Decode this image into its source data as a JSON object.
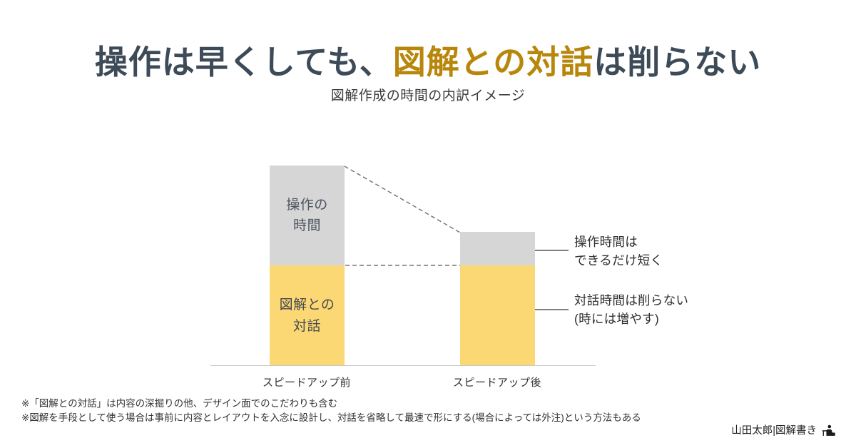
{
  "colors": {
    "title_text": "#3d4a57",
    "title_highlight": "#b8860b",
    "bar_gray": "#d6d6d6",
    "bar_yellow": "#fcd874",
    "annotation_line": "#555555"
  },
  "title": {
    "prefix": "操作は早くしても、",
    "highlight": "図解との対話",
    "suffix": "は削らない"
  },
  "subtitle": "図解作成の時間の内訳イメージ",
  "chart": {
    "type": "stacked-bar-comparison",
    "bars": [
      {
        "axis_label": "スピードアップ前",
        "gray_height": 140,
        "yellow_height": 141,
        "gray_segment": {
          "label_line1": "操作の",
          "label_line2": "時間"
        },
        "yellow_segment": {
          "label_line1": "図解との",
          "label_line2": "対話"
        }
      },
      {
        "axis_label": "スピードアップ後",
        "gray_height": 47,
        "yellow_height": 141,
        "gray_segment": {
          "label_line1": "",
          "label_line2": ""
        },
        "yellow_segment": {
          "label_line1": "",
          "label_line2": ""
        }
      }
    ],
    "annotations": [
      {
        "line1": "操作時間は",
        "line2": "できるだけ短く"
      },
      {
        "line1": "対話時間は削らない",
        "line2": "(時には増やす)"
      }
    ]
  },
  "footnotes": [
    "※「図解との対話」は内容の深掘りの他、デザイン面でのこだわりも含む",
    "※図解を手段として使う場合は事前に内容とレイアウトを入念に設計し、対話を省略して最速で形にする(場合によっては外注)という方法もある"
  ],
  "credit": {
    "text": "山田太郎|図解書き"
  }
}
